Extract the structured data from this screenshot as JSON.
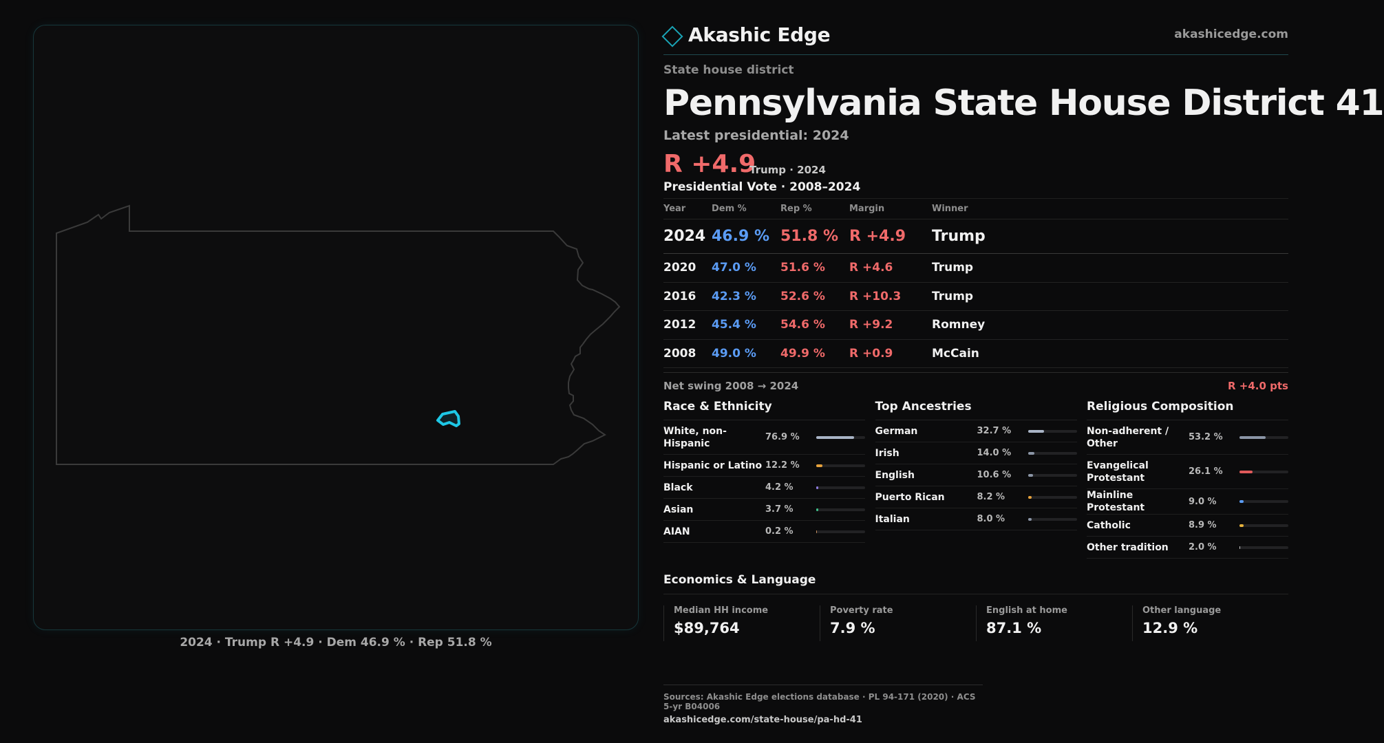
{
  "brand": {
    "name": "Akashic Edge",
    "url": "akashicedge.com",
    "accent": "#1aa4b6"
  },
  "district": {
    "kind": "State house district",
    "title": "Pennsylvania State House District 41",
    "latest_label": "Latest presidential: 2024",
    "margin": "R +4.9",
    "margin_note": "Trump · 2024"
  },
  "map": {
    "caption": "2024 · Trump R +4.9 · Dem 46.9 % · Rep 51.8 %",
    "district_color": "#1ec8e6",
    "state_outline": "#3a3a3a"
  },
  "votes": {
    "heading": "Presidential Vote · 2008–2024",
    "columns": [
      "Year",
      "Dem %",
      "Rep %",
      "Margin",
      "Winner"
    ],
    "rows": [
      {
        "year": "2024",
        "dem": "46.9 %",
        "rep": "51.8 %",
        "margin": "R +4.9",
        "winner": "Trump"
      },
      {
        "year": "2020",
        "dem": "47.0 %",
        "rep": "51.6 %",
        "margin": "R +4.6",
        "winner": "Trump"
      },
      {
        "year": "2016",
        "dem": "42.3 %",
        "rep": "52.6 %",
        "margin": "R +10.3",
        "winner": "Trump"
      },
      {
        "year": "2012",
        "dem": "45.4 %",
        "rep": "54.6 %",
        "margin": "R +9.2",
        "winner": "Romney"
      },
      {
        "year": "2008",
        "dem": "49.0 %",
        "rep": "49.9 %",
        "margin": "R +0.9",
        "winner": "McCain"
      }
    ],
    "swing_label": "Net swing 2008 → 2024",
    "swing_value": "R +4.0 pts"
  },
  "demographics": [
    {
      "heading": "Race & Ethnicity",
      "rows": [
        {
          "label": "White, non-Hispanic",
          "pct": "76.9 %",
          "value": 76.9,
          "color": "#a9b4c6"
        },
        {
          "label": "Hispanic or Latino",
          "pct": "12.2 %",
          "value": 12.2,
          "color": "#e6a23c"
        },
        {
          "label": "Black",
          "pct": "4.2 %",
          "value": 4.2,
          "color": "#8f7ce0"
        },
        {
          "label": "Asian",
          "pct": "3.7 %",
          "value": 3.7,
          "color": "#3fbf8a"
        },
        {
          "label": "AIAN",
          "pct": "0.2 %",
          "value": 0.2,
          "color": "#c89060"
        }
      ]
    },
    {
      "heading": "Top Ancestries",
      "rows": [
        {
          "label": "German",
          "pct": "32.7 %",
          "value": 32.7,
          "color": "#a9b4c6"
        },
        {
          "label": "Irish",
          "pct": "14.0 %",
          "value": 14.0,
          "color": "#8b95a6"
        },
        {
          "label": "English",
          "pct": "10.6 %",
          "value": 10.6,
          "color": "#8b95a6"
        },
        {
          "label": "Puerto Rican",
          "pct": "8.2 %",
          "value": 8.2,
          "color": "#e6a23c"
        },
        {
          "label": "Italian",
          "pct": "8.0 %",
          "value": 8.0,
          "color": "#8b95a6"
        }
      ]
    },
    {
      "heading": "Religious Composition",
      "rows": [
        {
          "label": "Non-adherent / Other",
          "pct": "53.2 %",
          "value": 53.2,
          "color": "#8b95a6"
        },
        {
          "label": "Evangelical Protestant",
          "pct": "26.1 %",
          "value": 26.1,
          "color": "#e05a5a"
        },
        {
          "label": "Mainline Protestant",
          "pct": "9.0 %",
          "value": 9.0,
          "color": "#5b9cf5"
        },
        {
          "label": "Catholic",
          "pct": "8.9 %",
          "value": 8.9,
          "color": "#e6b23c"
        },
        {
          "label": "Other tradition",
          "pct": "2.0 %",
          "value": 2.0,
          "color": "#c8c8c8"
        }
      ]
    }
  ],
  "economics": {
    "heading": "Economics & Language",
    "cells": [
      {
        "label": "Median HH income",
        "value": "$89,764"
      },
      {
        "label": "Poverty rate",
        "value": "7.9 %"
      },
      {
        "label": "English at home",
        "value": "87.1 %"
      },
      {
        "label": "Other language",
        "value": "12.9 %"
      }
    ]
  },
  "sources": {
    "line": "Sources: Akashic Edge elections database · PL 94-171 (2020) · ACS 5-yr B04006",
    "link": "akashicedge.com/state-house/pa-hd-41"
  }
}
